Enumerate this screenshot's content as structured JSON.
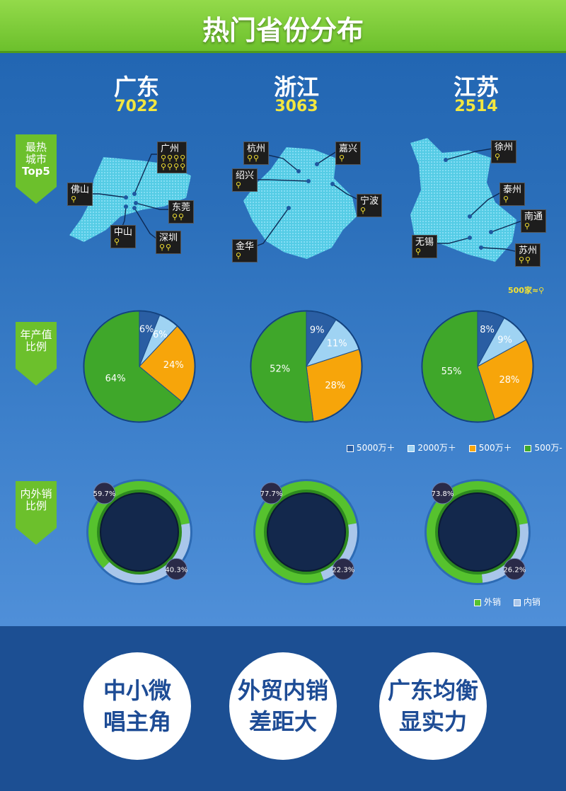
{
  "header": {
    "title": "热门省份分布"
  },
  "provinces": [
    {
      "name": "广东",
      "count": "7022"
    },
    {
      "name": "浙江",
      "count": "3063"
    },
    {
      "name": "江苏",
      "count": "2514"
    }
  ],
  "tags": {
    "hot_cities": {
      "line1": "最热",
      "line2": "城市",
      "line3": "Top5"
    },
    "output": {
      "line1": "年产值",
      "line2": "比例"
    },
    "sales": {
      "line1": "内外销",
      "line2": "比例"
    }
  },
  "cities": {
    "guangdong": [
      {
        "name": "广州",
        "pins": "⚲⚲⚲⚲ ⚲⚲⚲⚲"
      },
      {
        "name": "佛山",
        "pins": "⚲"
      },
      {
        "name": "东莞",
        "pins": "⚲⚲"
      },
      {
        "name": "中山",
        "pins": "⚲"
      },
      {
        "name": "深圳",
        "pins": "⚲⚲"
      }
    ],
    "zhejiang": [
      {
        "name": "杭州",
        "pins": "⚲⚲"
      },
      {
        "name": "嘉兴",
        "pins": "⚲"
      },
      {
        "name": "绍兴",
        "pins": "⚲"
      },
      {
        "name": "宁波",
        "pins": "⚲"
      },
      {
        "name": "金华",
        "pins": "⚲"
      }
    ],
    "jiangsu": [
      {
        "name": "徐州",
        "pins": "⚲"
      },
      {
        "name": "泰州",
        "pins": "⚲"
      },
      {
        "name": "南通",
        "pins": "⚲"
      },
      {
        "name": "无锡",
        "pins": "⚲"
      },
      {
        "name": "苏州",
        "pins": "⚲⚲"
      }
    ]
  },
  "map_note": "500家≈⚲",
  "chart_data": [
    {
      "type": "pie",
      "title": "广东",
      "categories": [
        "5000万＋",
        "2000万＋",
        "500万＋",
        "500万-"
      ],
      "values": [
        6,
        6,
        24,
        64
      ]
    },
    {
      "type": "pie",
      "title": "浙江",
      "categories": [
        "5000万＋",
        "2000万＋",
        "500万＋",
        "500万-"
      ],
      "values": [
        9,
        11,
        28,
        52
      ]
    },
    {
      "type": "pie",
      "title": "江苏",
      "categories": [
        "5000万＋",
        "2000万＋",
        "500万＋",
        "500万-"
      ],
      "values": [
        8,
        9,
        28,
        55
      ]
    },
    {
      "type": "pie",
      "title": "广东",
      "categories": [
        "外销",
        "内销"
      ],
      "values": [
        59.7,
        40.3
      ]
    },
    {
      "type": "pie",
      "title": "浙江",
      "categories": [
        "外销",
        "内销"
      ],
      "values": [
        77.7,
        22.3
      ]
    },
    {
      "type": "pie",
      "title": "江苏",
      "categories": [
        "外销",
        "内销"
      ],
      "values": [
        73.8,
        26.2
      ]
    }
  ],
  "pie_labels": {
    "gd": [
      "6%",
      "6%",
      "24%",
      "64%"
    ],
    "zj": [
      "9%",
      "11%",
      "28%",
      "52%"
    ],
    "js": [
      "8%",
      "9%",
      "28%",
      "55%"
    ]
  },
  "ring_labels": {
    "gd": [
      "59.7%",
      "40.3%"
    ],
    "zj": [
      "77.7%",
      "22.3%"
    ],
    "js": [
      "73.8%",
      "26.2%"
    ]
  },
  "legend_output": [
    "5000万＋",
    "2000万＋",
    "500万＋",
    "500万-"
  ],
  "legend_sales": [
    "外销",
    "内销"
  ],
  "colors": {
    "c5000": "#2a5ea3",
    "c2000": "#9fd3f3",
    "c500p": "#f7a50a",
    "c500m": "#3fa72a",
    "export": "#56c22e",
    "domestic": "#a9c6ea"
  },
  "conclusions": [
    {
      "line1": "中小微",
      "line2": "唱主角"
    },
    {
      "line1": "外贸内销",
      "line2": "差距大"
    },
    {
      "line1": "广东均衡",
      "line2": "显实力"
    }
  ]
}
